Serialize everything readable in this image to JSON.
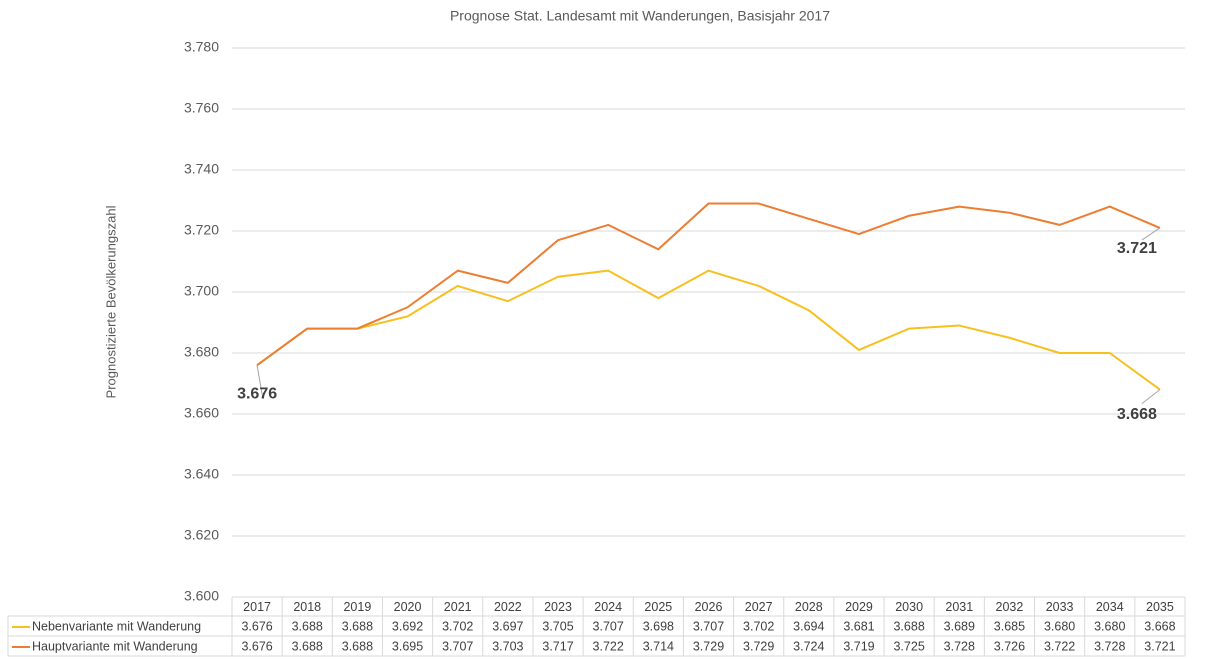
{
  "chart_data": {
    "type": "line",
    "title": "Prognose Stat. Landesamt  mit Wanderungen, Basisjahr 2017",
    "y_label": "Prognostizierte Bevölkerungszahl",
    "categories": [
      "2017",
      "2018",
      "2019",
      "2020",
      "2021",
      "2022",
      "2023",
      "2024",
      "2025",
      "2026",
      "2027",
      "2028",
      "2029",
      "2030",
      "2031",
      "2032",
      "2033",
      "2034",
      "2035"
    ],
    "series": [
      {
        "name": "Nebenvariante mit Wanderung",
        "color": "#f7c01f",
        "values": [
          3676,
          3688,
          3688,
          3692,
          3702,
          3697,
          3705,
          3707,
          3698,
          3707,
          3702,
          3694,
          3681,
          3688,
          3689,
          3685,
          3680,
          3680,
          3668
        ],
        "value_labels": [
          "3.676",
          "3.688",
          "3.688",
          "3.692",
          "3.702",
          "3.697",
          "3.705",
          "3.707",
          "3.698",
          "3.707",
          "3.702",
          "3.694",
          "3.681",
          "3.688",
          "3.689",
          "3.685",
          "3.680",
          "3.680",
          "3.668"
        ]
      },
      {
        "name": "Hauptvariante mit Wanderung",
        "color": "#ed7d31",
        "values": [
          3676,
          3688,
          3688,
          3695,
          3707,
          3703,
          3717,
          3722,
          3714,
          3729,
          3729,
          3724,
          3719,
          3725,
          3728,
          3726,
          3722,
          3728,
          3721
        ],
        "value_labels": [
          "3.676",
          "3.688",
          "3.688",
          "3.695",
          "3.707",
          "3.703",
          "3.717",
          "3.722",
          "3.714",
          "3.729",
          "3.729",
          "3.724",
          "3.719",
          "3.725",
          "3.728",
          "3.726",
          "3.722",
          "3.728",
          "3.721"
        ]
      }
    ],
    "ylim": [
      3600,
      3780
    ],
    "yticks": [
      {
        "value": 3600,
        "label": "3.600"
      },
      {
        "value": 3620,
        "label": "3.620"
      },
      {
        "value": 3640,
        "label": "3.640"
      },
      {
        "value": 3660,
        "label": "3.660"
      },
      {
        "value": 3680,
        "label": "3.680"
      },
      {
        "value": 3700,
        "label": "3.700"
      },
      {
        "value": 3720,
        "label": "3.720"
      },
      {
        "value": 3740,
        "label": "3.740"
      },
      {
        "value": 3760,
        "label": "3.760"
      },
      {
        "value": 3780,
        "label": "3.780"
      }
    ],
    "grid": true
  }
}
